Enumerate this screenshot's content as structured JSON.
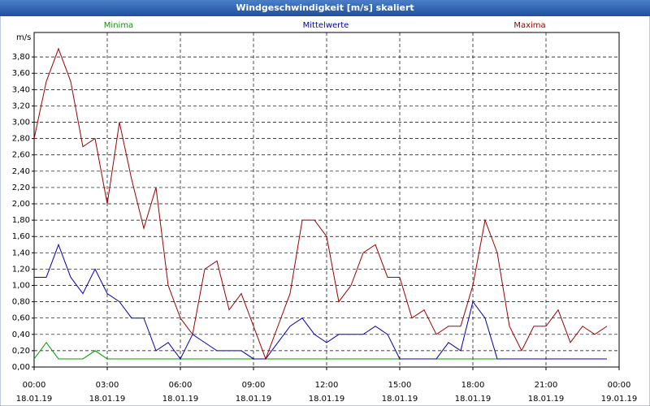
{
  "chart_data": {
    "type": "line",
    "title": "Windgeschwindigkeit [m/s] skaliert",
    "y_unit": "m/s",
    "x": [
      0,
      0.5,
      1,
      1.5,
      2,
      2.5,
      3,
      3.5,
      4,
      4.5,
      5,
      5.5,
      6,
      6.5,
      7,
      7.5,
      8,
      8.5,
      9,
      9.5,
      10,
      10.5,
      11,
      11.5,
      12,
      12.5,
      13,
      13.5,
      14,
      14.5,
      15,
      15.5,
      16,
      16.5,
      17,
      17.5,
      18,
      18.5,
      19,
      19.5,
      20,
      20.5,
      21,
      21.5,
      22,
      22.5,
      23,
      23.5
    ],
    "series": [
      {
        "name": "Minima",
        "color": "#00a000",
        "values": [
          0.1,
          0.3,
          0.1,
          0.1,
          0.1,
          0.2,
          0.1,
          0.1,
          0.1,
          0.1,
          0.1,
          0.1,
          0.1,
          0.1,
          0.1,
          0.1,
          0.1,
          0.1,
          0.1,
          0.1,
          0.1,
          0.1,
          0.1,
          0.1,
          0.1,
          0.1,
          0.1,
          0.1,
          0.1,
          0.1,
          0.1,
          0.1,
          0.1,
          0.1,
          0.1,
          0.1,
          0.1,
          0.1,
          0.1,
          0.1,
          0.1,
          0.1,
          0.1,
          0.1,
          0.1,
          0.1,
          0.1,
          0.1
        ]
      },
      {
        "name": "Mittelwerte",
        "color": "#0000b0",
        "values": [
          1.1,
          1.1,
          1.5,
          1.1,
          0.9,
          1.2,
          0.9,
          0.8,
          0.6,
          0.6,
          0.2,
          0.3,
          0.1,
          0.4,
          0.3,
          0.2,
          0.2,
          0.2,
          0.1,
          0.1,
          0.3,
          0.5,
          0.6,
          0.4,
          0.3,
          0.4,
          0.4,
          0.4,
          0.5,
          0.4,
          0.1,
          0.1,
          0.1,
          0.1,
          0.3,
          0.2,
          0.8,
          0.6,
          0.1,
          0.1,
          0.1,
          0.1,
          0.1,
          0.1,
          0.1,
          0.1,
          0.1,
          0.1
        ]
      },
      {
        "name": "Maxima",
        "color": "#a00000",
        "values": [
          2.8,
          3.5,
          3.9,
          3.5,
          2.7,
          2.8,
          2.0,
          3.0,
          2.3,
          1.7,
          2.2,
          1.0,
          0.6,
          0.4,
          1.2,
          1.3,
          0.7,
          0.9,
          0.5,
          0.1,
          0.5,
          0.9,
          1.8,
          1.8,
          1.6,
          0.8,
          1.0,
          1.4,
          1.5,
          1.1,
          1.1,
          0.6,
          0.7,
          0.4,
          0.5,
          0.5,
          1.0,
          1.8,
          1.4,
          0.5,
          0.2,
          0.5,
          0.5,
          0.7,
          0.3,
          0.5,
          0.4,
          0.5
        ]
      }
    ],
    "xlim": [
      0,
      24
    ],
    "xticks": [
      {
        "value": 0,
        "label": "00:00 18.01.19"
      },
      {
        "value": 3,
        "label": "03:00 18.01.19"
      },
      {
        "value": 6,
        "label": "06:00 18.01.19"
      },
      {
        "value": 9,
        "label": "09:00 18.01.19"
      },
      {
        "value": 12,
        "label": "12:00 18.01.19"
      },
      {
        "value": 15,
        "label": "15:00 18.01.19"
      },
      {
        "value": 18,
        "label": "18:00 18.01.19"
      },
      {
        "value": 21,
        "label": "21:00 18.01.19"
      },
      {
        "value": 24,
        "label": "00:00 19.01.19"
      }
    ],
    "ylim": [
      0,
      4.1
    ],
    "yticks": [
      {
        "value": 0,
        "label": "0,00"
      },
      {
        "value": 0.2,
        "label": "0,20"
      },
      {
        "value": 0.4,
        "label": "0,40"
      },
      {
        "value": 0.6,
        "label": "0,60"
      },
      {
        "value": 0.8,
        "label": "0,80"
      },
      {
        "value": 1.0,
        "label": "1,00"
      },
      {
        "value": 1.2,
        "label": "1,20"
      },
      {
        "value": 1.4,
        "label": "1,40"
      },
      {
        "value": 1.6,
        "label": "1,60"
      },
      {
        "value": 1.8,
        "label": "1,80"
      },
      {
        "value": 2.0,
        "label": "2,00"
      },
      {
        "value": 2.2,
        "label": "2,20"
      },
      {
        "value": 2.4,
        "label": "2,40"
      },
      {
        "value": 2.6,
        "label": "2,60"
      },
      {
        "value": 2.8,
        "label": "2,80"
      },
      {
        "value": 3.0,
        "label": "3,00"
      },
      {
        "value": 3.2,
        "label": "3,20"
      },
      {
        "value": 3.4,
        "label": "3,40"
      },
      {
        "value": 3.6,
        "label": "3,60"
      },
      {
        "value": 3.8,
        "label": "3,80"
      }
    ],
    "grid": true
  }
}
